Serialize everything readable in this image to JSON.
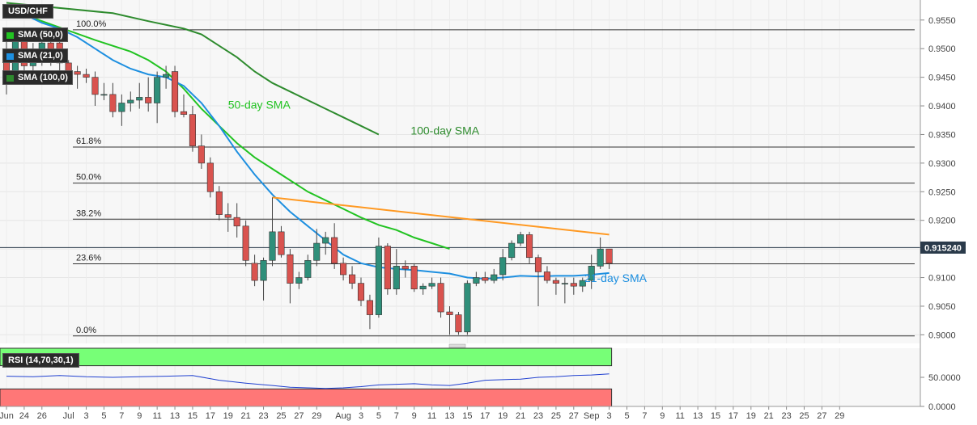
{
  "symbol": "USD/CHF",
  "legends": [
    {
      "label": "SMA (50,0)",
      "color": "#22c322"
    },
    {
      "label": "SMA (21,0)",
      "color": "#1d8fe0"
    },
    {
      "label": "SMA (100,0)",
      "color": "#2e8b2e"
    }
  ],
  "rsi_label": "RSI (14,70,30,1)",
  "price_tag": "0.915240",
  "colors": {
    "up": "#2f8f7a",
    "down": "#d9534f",
    "sma50": "#22c322",
    "sma21": "#1d8fe0",
    "sma100": "#2e8b2e",
    "trend": "#ff9922",
    "rsi_over": "#77ff77",
    "rsi_under": "#ff7777",
    "rsi_line": "#2040d0"
  },
  "chart_data": {
    "type": "candlestick",
    "y_ticks": [
      "0.9000",
      "0.9050",
      "0.9100",
      "0.9150",
      "0.9200",
      "0.9250",
      "0.9300",
      "0.9350",
      "0.9400",
      "0.9450",
      "0.9500",
      "0.9550"
    ],
    "ylim": [
      0.8985,
      0.9585
    ],
    "x_ticks": [
      {
        "label": "Jun",
        "i": 0
      },
      {
        "label": "24",
        "i": 2
      },
      {
        "label": "26",
        "i": 4
      },
      {
        "label": "Jul",
        "i": 7
      },
      {
        "label": "3",
        "i": 9
      },
      {
        "label": "5",
        "i": 11
      },
      {
        "label": "7",
        "i": 13
      },
      {
        "label": "9",
        "i": 15
      },
      {
        "label": "11",
        "i": 17
      },
      {
        "label": "13",
        "i": 19
      },
      {
        "label": "15",
        "i": 21
      },
      {
        "label": "17",
        "i": 23
      },
      {
        "label": "19",
        "i": 25
      },
      {
        "label": "21",
        "i": 27
      },
      {
        "label": "23",
        "i": 29
      },
      {
        "label": "25",
        "i": 31
      },
      {
        "label": "27",
        "i": 33
      },
      {
        "label": "29",
        "i": 35
      },
      {
        "label": "Aug",
        "i": 38
      },
      {
        "label": "3",
        "i": 40
      },
      {
        "label": "5",
        "i": 42
      },
      {
        "label": "7",
        "i": 44
      },
      {
        "label": "9",
        "i": 46
      },
      {
        "label": "11",
        "i": 48
      },
      {
        "label": "13",
        "i": 50
      },
      {
        "label": "15",
        "i": 52
      },
      {
        "label": "17",
        "i": 54
      },
      {
        "label": "19",
        "i": 56
      },
      {
        "label": "21",
        "i": 58
      },
      {
        "label": "23",
        "i": 60
      },
      {
        "label": "25",
        "i": 62
      },
      {
        "label": "27",
        "i": 64
      },
      {
        "label": "Sep",
        "i": 66
      },
      {
        "label": "3",
        "i": 68
      },
      {
        "label": "5",
        "i": 70
      },
      {
        "label": "7",
        "i": 72
      },
      {
        "label": "9",
        "i": 74
      },
      {
        "label": "11",
        "i": 76
      },
      {
        "label": "13",
        "i": 78
      },
      {
        "label": "15",
        "i": 80
      },
      {
        "label": "17",
        "i": 82
      },
      {
        "label": "19",
        "i": 84
      },
      {
        "label": "21",
        "i": 86
      },
      {
        "label": "23",
        "i": 88
      },
      {
        "label": "25",
        "i": 90
      },
      {
        "label": "27",
        "i": 92
      },
      {
        "label": "29",
        "i": 94
      }
    ],
    "x_count": 96,
    "candles": [
      {
        "i": 0,
        "o": 0.949,
        "h": 0.952,
        "l": 0.942,
        "c": 0.946
      },
      {
        "i": 1,
        "o": 0.946,
        "h": 0.953,
        "l": 0.944,
        "c": 0.9515
      },
      {
        "i": 2,
        "o": 0.9515,
        "h": 0.953,
        "l": 0.944,
        "c": 0.947
      },
      {
        "i": 3,
        "o": 0.947,
        "h": 0.951,
        "l": 0.945,
        "c": 0.949
      },
      {
        "i": 4,
        "o": 0.949,
        "h": 0.9525,
        "l": 0.947,
        "c": 0.951
      },
      {
        "i": 5,
        "o": 0.951,
        "h": 0.9525,
        "l": 0.947,
        "c": 0.948
      },
      {
        "i": 6,
        "o": 0.951,
        "h": 0.952,
        "l": 0.945,
        "c": 0.9475
      },
      {
        "i": 7,
        "o": 0.9475,
        "h": 0.948,
        "l": 0.9445,
        "c": 0.946
      },
      {
        "i": 8,
        "o": 0.946,
        "h": 0.947,
        "l": 0.943,
        "c": 0.9455
      },
      {
        "i": 9,
        "o": 0.9455,
        "h": 0.9465,
        "l": 0.944,
        "c": 0.945
      },
      {
        "i": 10,
        "o": 0.945,
        "h": 0.946,
        "l": 0.94,
        "c": 0.942
      },
      {
        "i": 11,
        "o": 0.942,
        "h": 0.944,
        "l": 0.941,
        "c": 0.942
      },
      {
        "i": 12,
        "o": 0.942,
        "h": 0.944,
        "l": 0.938,
        "c": 0.939
      },
      {
        "i": 13,
        "o": 0.939,
        "h": 0.942,
        "l": 0.9365,
        "c": 0.9405
      },
      {
        "i": 14,
        "o": 0.9405,
        "h": 0.9425,
        "l": 0.939,
        "c": 0.941
      },
      {
        "i": 15,
        "o": 0.941,
        "h": 0.944,
        "l": 0.9395,
        "c": 0.9415
      },
      {
        "i": 16,
        "o": 0.9415,
        "h": 0.945,
        "l": 0.939,
        "c": 0.9405
      },
      {
        "i": 17,
        "o": 0.9405,
        "h": 0.946,
        "l": 0.937,
        "c": 0.945
      },
      {
        "i": 18,
        "o": 0.945,
        "h": 0.947,
        "l": 0.943,
        "c": 0.9455
      },
      {
        "i": 19,
        "o": 0.946,
        "h": 0.947,
        "l": 0.938,
        "c": 0.939
      },
      {
        "i": 20,
        "o": 0.939,
        "h": 0.942,
        "l": 0.938,
        "c": 0.9385
      },
      {
        "i": 21,
        "o": 0.9385,
        "h": 0.94,
        "l": 0.932,
        "c": 0.933
      },
      {
        "i": 22,
        "o": 0.933,
        "h": 0.935,
        "l": 0.929,
        "c": 0.93
      },
      {
        "i": 23,
        "o": 0.93,
        "h": 0.931,
        "l": 0.924,
        "c": 0.925
      },
      {
        "i": 24,
        "o": 0.925,
        "h": 0.926,
        "l": 0.92,
        "c": 0.921
      },
      {
        "i": 25,
        "o": 0.921,
        "h": 0.923,
        "l": 0.918,
        "c": 0.9205
      },
      {
        "i": 26,
        "o": 0.9205,
        "h": 0.923,
        "l": 0.917,
        "c": 0.919
      },
      {
        "i": 27,
        "o": 0.919,
        "h": 0.92,
        "l": 0.912,
        "c": 0.913
      },
      {
        "i": 28,
        "o": 0.9125,
        "h": 0.914,
        "l": 0.9085,
        "c": 0.9095
      },
      {
        "i": 29,
        "o": 0.9095,
        "h": 0.9135,
        "l": 0.906,
        "c": 0.913
      },
      {
        "i": 30,
        "o": 0.913,
        "h": 0.924,
        "l": 0.912,
        "c": 0.918
      },
      {
        "i": 31,
        "o": 0.918,
        "h": 0.919,
        "l": 0.9135,
        "c": 0.914
      },
      {
        "i": 32,
        "o": 0.914,
        "h": 0.915,
        "l": 0.9055,
        "c": 0.909
      },
      {
        "i": 33,
        "o": 0.909,
        "h": 0.911,
        "l": 0.908,
        "c": 0.91
      },
      {
        "i": 34,
        "o": 0.91,
        "h": 0.914,
        "l": 0.9095,
        "c": 0.913
      },
      {
        "i": 35,
        "o": 0.913,
        "h": 0.9185,
        "l": 0.912,
        "c": 0.916
      },
      {
        "i": 36,
        "o": 0.916,
        "h": 0.918,
        "l": 0.914,
        "c": 0.917
      },
      {
        "i": 37,
        "o": 0.917,
        "h": 0.9195,
        "l": 0.9115,
        "c": 0.9125
      },
      {
        "i": 38,
        "o": 0.9125,
        "h": 0.9135,
        "l": 0.9095,
        "c": 0.9105
      },
      {
        "i": 39,
        "o": 0.9105,
        "h": 0.912,
        "l": 0.908,
        "c": 0.909
      },
      {
        "i": 40,
        "o": 0.909,
        "h": 0.91,
        "l": 0.905,
        "c": 0.906
      },
      {
        "i": 41,
        "o": 0.906,
        "h": 0.907,
        "l": 0.901,
        "c": 0.9035
      },
      {
        "i": 42,
        "o": 0.9035,
        "h": 0.917,
        "l": 0.903,
        "c": 0.9155
      },
      {
        "i": 43,
        "o": 0.9155,
        "h": 0.916,
        "l": 0.907,
        "c": 0.908
      },
      {
        "i": 44,
        "o": 0.908,
        "h": 0.915,
        "l": 0.907,
        "c": 0.912
      },
      {
        "i": 45,
        "o": 0.912,
        "h": 0.913,
        "l": 0.91,
        "c": 0.9115
      },
      {
        "i": 46,
        "o": 0.912,
        "h": 0.9125,
        "l": 0.9075,
        "c": 0.908
      },
      {
        "i": 47,
        "o": 0.908,
        "h": 0.909,
        "l": 0.907,
        "c": 0.9085
      },
      {
        "i": 48,
        "o": 0.9085,
        "h": 0.91,
        "l": 0.908,
        "c": 0.909
      },
      {
        "i": 49,
        "o": 0.909,
        "h": 0.91,
        "l": 0.903,
        "c": 0.904
      },
      {
        "i": 50,
        "o": 0.904,
        "h": 0.905,
        "l": 0.9,
        "c": 0.9035
      },
      {
        "i": 51,
        "o": 0.9035,
        "h": 0.904,
        "l": 0.9,
        "c": 0.9005
      },
      {
        "i": 52,
        "o": 0.9005,
        "h": 0.9095,
        "l": 0.9,
        "c": 0.909
      },
      {
        "i": 53,
        "o": 0.909,
        "h": 0.911,
        "l": 0.9085,
        "c": 0.91
      },
      {
        "i": 54,
        "o": 0.91,
        "h": 0.911,
        "l": 0.909,
        "c": 0.9095
      },
      {
        "i": 55,
        "o": 0.9095,
        "h": 0.9115,
        "l": 0.909,
        "c": 0.9105
      },
      {
        "i": 56,
        "o": 0.9105,
        "h": 0.915,
        "l": 0.9095,
        "c": 0.9135
      },
      {
        "i": 57,
        "o": 0.9135,
        "h": 0.9165,
        "l": 0.913,
        "c": 0.916
      },
      {
        "i": 58,
        "o": 0.916,
        "h": 0.918,
        "l": 0.9155,
        "c": 0.9175
      },
      {
        "i": 59,
        "o": 0.9175,
        "h": 0.918,
        "l": 0.9125,
        "c": 0.9135
      },
      {
        "i": 60,
        "o": 0.9135,
        "h": 0.914,
        "l": 0.905,
        "c": 0.911
      },
      {
        "i": 61,
        "o": 0.911,
        "h": 0.912,
        "l": 0.909,
        "c": 0.9095
      },
      {
        "i": 62,
        "o": 0.9095,
        "h": 0.91,
        "l": 0.907,
        "c": 0.909
      },
      {
        "i": 63,
        "o": 0.909,
        "h": 0.91,
        "l": 0.9055,
        "c": 0.909
      },
      {
        "i": 64,
        "o": 0.909,
        "h": 0.91,
        "l": 0.907,
        "c": 0.9085
      },
      {
        "i": 65,
        "o": 0.9085,
        "h": 0.91,
        "l": 0.9075,
        "c": 0.9095
      },
      {
        "i": 66,
        "o": 0.9095,
        "h": 0.914,
        "l": 0.908,
        "c": 0.912
      },
      {
        "i": 67,
        "o": 0.912,
        "h": 0.917,
        "l": 0.9115,
        "c": 0.915
      },
      {
        "i": 68,
        "o": 0.915,
        "h": 0.915,
        "l": 0.9115,
        "c": 0.9125
      }
    ],
    "sma21": [
      [
        0,
        0.957
      ],
      [
        2,
        0.956
      ],
      [
        4,
        0.9545
      ],
      [
        6,
        0.9535
      ],
      [
        8,
        0.952
      ],
      [
        10,
        0.95
      ],
      [
        12,
        0.948
      ],
      [
        14,
        0.9465
      ],
      [
        16,
        0.9455
      ],
      [
        18,
        0.945
      ],
      [
        20,
        0.9435
      ],
      [
        22,
        0.9405
      ],
      [
        24,
        0.9365
      ],
      [
        26,
        0.932
      ],
      [
        28,
        0.928
      ],
      [
        30,
        0.9245
      ],
      [
        32,
        0.9215
      ],
      [
        34,
        0.919
      ],
      [
        36,
        0.9165
      ],
      [
        38,
        0.914
      ],
      [
        40,
        0.9125
      ],
      [
        42,
        0.9118
      ],
      [
        44,
        0.9115
      ],
      [
        46,
        0.9113
      ],
      [
        48,
        0.911
      ],
      [
        50,
        0.9107
      ],
      [
        52,
        0.91
      ],
      [
        54,
        0.9098
      ],
      [
        56,
        0.91
      ],
      [
        58,
        0.9103
      ],
      [
        60,
        0.9102
      ],
      [
        62,
        0.9103
      ],
      [
        64,
        0.9103
      ],
      [
        66,
        0.9105
      ],
      [
        68,
        0.9108
      ]
    ],
    "sma50": [
      [
        0,
        0.957
      ],
      [
        10,
        0.9515
      ],
      [
        14,
        0.9495
      ],
      [
        16,
        0.948
      ],
      [
        18,
        0.946
      ],
      [
        20,
        0.943
      ],
      [
        22,
        0.9395
      ],
      [
        24,
        0.9365
      ],
      [
        26,
        0.9335
      ],
      [
        28,
        0.931
      ],
      [
        30,
        0.929
      ],
      [
        32,
        0.927
      ],
      [
        34,
        0.925
      ],
      [
        36,
        0.9235
      ],
      [
        38,
        0.922
      ],
      [
        40,
        0.9205
      ],
      [
        42,
        0.9192
      ],
      [
        44,
        0.9183
      ],
      [
        46,
        0.917
      ],
      [
        48,
        0.916
      ],
      [
        50,
        0.915
      ]
    ],
    "sma100": [
      [
        0,
        0.958
      ],
      [
        12,
        0.9562
      ],
      [
        16,
        0.9548
      ],
      [
        20,
        0.9535
      ],
      [
        22,
        0.9525
      ],
      [
        24,
        0.9505
      ],
      [
        26,
        0.9485
      ],
      [
        28,
        0.946
      ],
      [
        30,
        0.944
      ],
      [
        32,
        0.9425
      ],
      [
        34,
        0.941
      ],
      [
        36,
        0.9395
      ],
      [
        38,
        0.938
      ],
      [
        40,
        0.9365
      ],
      [
        42,
        0.935
      ]
    ],
    "trendline": {
      "from": [
        30,
        0.924
      ],
      "to": [
        68,
        0.9175
      ]
    },
    "fib_levels": [
      {
        "label": "100.0%",
        "value": 0.9533
      },
      {
        "label": "61.8%",
        "value": 0.9328
      },
      {
        "label": "50.0%",
        "value": 0.9265
      },
      {
        "label": "38.2%",
        "value": 0.9202
      },
      {
        "label": "23.6%",
        "value": 0.9124
      },
      {
        "label": "0.0%",
        "value": 0.8998
      }
    ],
    "annotations": [
      {
        "text": "50-day SMA",
        "anchor": "sma50"
      },
      {
        "text": "100-day SMA",
        "anchor": "sma100"
      },
      {
        "text": "21-day SMA",
        "anchor": "sma21"
      }
    ],
    "current_price": 0.91524,
    "rsi": {
      "ylim": [
        0,
        100
      ],
      "y_ticks": [
        "50.0000",
        "0.0000"
      ],
      "overbought": 70,
      "oversold": 30,
      "values": [
        [
          0,
          52
        ],
        [
          3,
          51
        ],
        [
          6,
          53
        ],
        [
          9,
          51
        ],
        [
          12,
          50
        ],
        [
          15,
          51
        ],
        [
          18,
          52
        ],
        [
          21,
          53
        ],
        [
          24,
          45
        ],
        [
          27,
          40
        ],
        [
          30,
          36
        ],
        [
          32,
          33
        ],
        [
          34,
          32
        ],
        [
          36,
          31
        ],
        [
          38,
          32
        ],
        [
          40,
          34
        ],
        [
          42,
          37
        ],
        [
          44,
          38
        ],
        [
          46,
          39
        ],
        [
          48,
          37
        ],
        [
          50,
          36
        ],
        [
          52,
          40
        ],
        [
          54,
          45
        ],
        [
          56,
          46
        ],
        [
          58,
          47
        ],
        [
          60,
          50
        ],
        [
          62,
          51
        ],
        [
          64,
          53
        ],
        [
          66,
          54
        ],
        [
          68,
          56
        ]
      ]
    }
  }
}
